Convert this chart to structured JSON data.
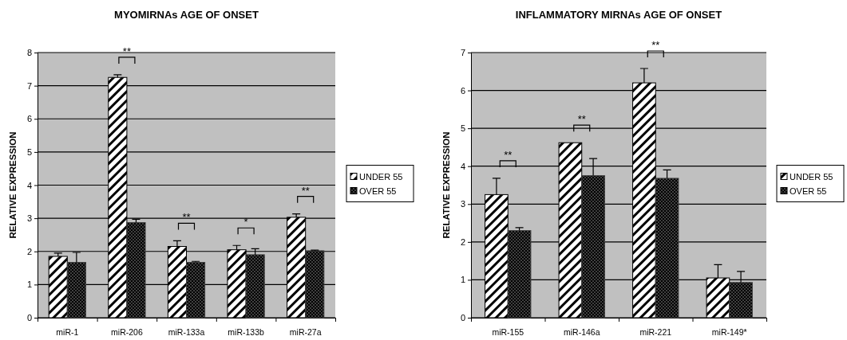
{
  "chart_data": [
    {
      "type": "bar",
      "title": "MYOMIRNAs AGE OF ONSET",
      "ylabel": "RELATIVE EXPRESSION",
      "categories": [
        "miR-1",
        "miR-206",
        "miR-133a",
        "miR-133b",
        "miR-27a"
      ],
      "series": [
        {
          "name": "UNDER 55",
          "color": "#000000",
          "values": [
            1.85,
            7.25,
            2.15,
            2.05,
            3.03
          ],
          "errors": [
            [
              1.85,
              1.95
            ],
            [
              7.25,
              7.33
            ],
            [
              2.15,
              2.32
            ],
            [
              2.05,
              2.18
            ],
            [
              3.03,
              3.13
            ]
          ]
        },
        {
          "name": "OVER 55",
          "color": "#404040",
          "values": [
            1.67,
            2.87,
            1.67,
            1.9,
            2.02
          ],
          "errors": [
            [
              1.67,
              1.97
            ],
            [
              2.87,
              2.97
            ],
            [
              1.67,
              1.7
            ],
            [
              1.9,
              2.08
            ],
            [
              2.02,
              2.04
            ]
          ]
        }
      ],
      "annotations": [
        "**",
        "**",
        "*",
        "**"
      ],
      "ylim": [
        0,
        8
      ],
      "yticks": [
        0,
        1,
        2,
        3,
        4,
        5,
        6,
        7,
        8
      ],
      "grid": "y",
      "legend": "right"
    },
    {
      "type": "bar",
      "title": "INFLAMMATORY MIRNAs AGE OF ONSET",
      "ylabel": "RELATIVE EXPRESSION",
      "categories": [
        "miR-155",
        "miR-146a",
        "miR-221",
        "miR-149*"
      ],
      "series": [
        {
          "name": "UNDER 55",
          "color": "#000000",
          "values": [
            3.25,
            4.62,
            6.2,
            1.05
          ],
          "errors": [
            [
              3.25,
              3.68
            ],
            null,
            [
              6.2,
              6.58
            ],
            [
              1.05,
              1.4
            ]
          ]
        },
        {
          "name": "OVER 55",
          "color": "#404040",
          "values": [
            2.3,
            3.75,
            3.68,
            0.93
          ],
          "errors": [
            [
              2.3,
              2.38
            ],
            [
              3.75,
              4.2
            ],
            [
              3.68,
              3.9
            ],
            [
              0.93,
              1.22
            ]
          ]
        }
      ],
      "annotations": [
        "**",
        "**",
        "**"
      ],
      "ylim": [
        0,
        7
      ],
      "yticks": [
        0,
        1,
        2,
        3,
        4,
        5,
        6,
        7
      ],
      "grid": "y",
      "legend": "right"
    }
  ]
}
